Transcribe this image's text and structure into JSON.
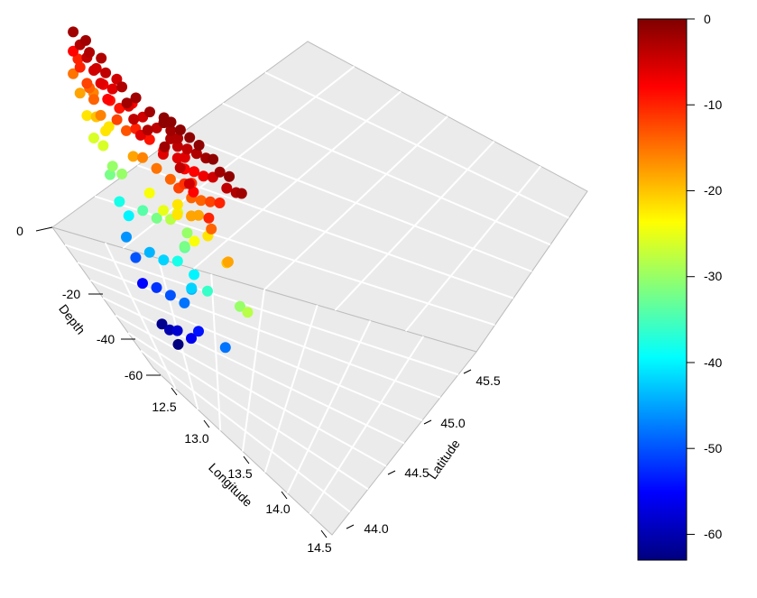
{
  "chart_data": {
    "type": "scatter",
    "title": "",
    "axes": {
      "x": {
        "label": "Longitude",
        "range": [
          12.3,
          14.6
        ],
        "ticks": [
          "12.5",
          "13.0",
          "13.5",
          "14.0",
          "14.5"
        ]
      },
      "y": {
        "label": "Latitude",
        "range": [
          43.7,
          45.9
        ],
        "ticks": [
          "44.0",
          "44.5",
          "45.0",
          "45.5"
        ]
      },
      "z": {
        "label": "Depth",
        "range": [
          -70,
          0
        ],
        "ticks": [
          "0",
          "-20",
          "-40",
          "-60"
        ]
      }
    },
    "colorbar": {
      "ticks": [
        "0",
        "-10",
        "-20",
        "-30",
        "-40",
        "-50",
        "-60"
      ],
      "range": [
        -63,
        0
      ],
      "colormap": "jet",
      "stops": [
        "#00007F",
        "#0000FF",
        "#007FFF",
        "#00FFFF",
        "#7FFF7F",
        "#FFFF00",
        "#FF7F00",
        "#FF0000",
        "#7F0000"
      ]
    },
    "grid": true,
    "points": [
      [
        12.45,
        45.7,
        -2
      ],
      [
        12.45,
        45.55,
        -3
      ],
      [
        12.45,
        45.4,
        -4
      ],
      [
        12.45,
        45.25,
        -5
      ],
      [
        12.45,
        45.1,
        -6
      ],
      [
        12.45,
        44.95,
        -8
      ],
      [
        12.45,
        45.7,
        -8
      ],
      [
        12.45,
        45.55,
        -10
      ],
      [
        12.45,
        45.4,
        -12
      ],
      [
        12.45,
        45.25,
        -14
      ],
      [
        12.45,
        45.1,
        -16
      ],
      [
        12.45,
        45.7,
        -15
      ],
      [
        12.45,
        45.55,
        -18
      ],
      [
        12.45,
        45.4,
        -22
      ],
      [
        12.45,
        45.25,
        -26
      ],
      [
        12.6,
        45.6,
        -3
      ],
      [
        12.6,
        45.45,
        -5
      ],
      [
        12.6,
        45.3,
        -7
      ],
      [
        12.6,
        45.15,
        -9
      ],
      [
        12.6,
        45.0,
        -12
      ],
      [
        12.6,
        45.6,
        -14
      ],
      [
        12.6,
        45.45,
        -20
      ],
      [
        12.6,
        45.3,
        -26
      ],
      [
        12.6,
        45.15,
        -32
      ],
      [
        12.75,
        45.5,
        -4
      ],
      [
        12.75,
        45.35,
        -6
      ],
      [
        12.75,
        45.2,
        -9
      ],
      [
        12.75,
        45.05,
        -13
      ],
      [
        12.75,
        44.9,
        -18
      ],
      [
        12.75,
        45.5,
        -22
      ],
      [
        12.75,
        45.35,
        -30
      ],
      [
        12.75,
        45.2,
        -38
      ],
      [
        12.75,
        45.05,
        -46
      ],
      [
        12.9,
        45.4,
        -3
      ],
      [
        12.9,
        45.25,
        -6
      ],
      [
        12.9,
        45.1,
        -10
      ],
      [
        12.9,
        44.95,
        -16
      ],
      [
        12.9,
        44.8,
        -24
      ],
      [
        12.9,
        45.4,
        -30
      ],
      [
        12.9,
        45.25,
        -40
      ],
      [
        12.9,
        45.1,
        -50
      ],
      [
        12.9,
        44.95,
        -55
      ],
      [
        13.05,
        45.35,
        -2
      ],
      [
        13.05,
        45.2,
        -5
      ],
      [
        13.05,
        45.05,
        -9
      ],
      [
        13.05,
        44.9,
        -15
      ],
      [
        13.05,
        44.75,
        -25
      ],
      [
        13.05,
        45.2,
        -34
      ],
      [
        13.05,
        45.05,
        -44
      ],
      [
        13.05,
        44.9,
        -52
      ],
      [
        13.2,
        45.3,
        -2
      ],
      [
        13.2,
        45.15,
        -4
      ],
      [
        13.2,
        45.0,
        -8
      ],
      [
        13.2,
        44.85,
        -14
      ],
      [
        13.2,
        44.7,
        -22
      ],
      [
        13.2,
        45.15,
        -32
      ],
      [
        13.2,
        45.0,
        -42
      ],
      [
        13.2,
        44.85,
        -50
      ],
      [
        13.2,
        44.7,
        -58
      ],
      [
        13.35,
        45.25,
        -1
      ],
      [
        13.35,
        45.1,
        -3
      ],
      [
        13.35,
        44.95,
        -6
      ],
      [
        13.35,
        44.8,
        -11
      ],
      [
        13.35,
        44.65,
        -18
      ],
      [
        13.35,
        45.1,
        -28
      ],
      [
        13.35,
        44.95,
        -38
      ],
      [
        13.35,
        44.8,
        -48
      ],
      [
        13.35,
        44.65,
        -56
      ],
      [
        13.5,
        45.5,
        -1
      ],
      [
        13.5,
        45.35,
        -2
      ],
      [
        13.5,
        45.2,
        -4
      ],
      [
        13.5,
        45.05,
        -8
      ],
      [
        13.5,
        44.9,
        -14
      ],
      [
        13.5,
        45.2,
        -22
      ],
      [
        13.5,
        45.05,
        -32
      ],
      [
        13.5,
        44.9,
        -42
      ],
      [
        13.65,
        45.6,
        -1
      ],
      [
        13.65,
        45.45,
        -3
      ],
      [
        13.65,
        45.3,
        -6
      ],
      [
        13.65,
        45.15,
        -11
      ],
      [
        13.65,
        45.0,
        -18
      ],
      [
        13.65,
        45.45,
        -26
      ],
      [
        13.65,
        45.3,
        -34
      ],
      [
        13.65,
        45.15,
        -44
      ],
      [
        13.65,
        45.0,
        -54
      ],
      [
        13.8,
        45.65,
        -1
      ],
      [
        13.8,
        45.5,
        -4
      ],
      [
        13.8,
        45.35,
        -8
      ],
      [
        13.8,
        45.2,
        -14
      ],
      [
        13.8,
        45.05,
        -22
      ],
      [
        13.8,
        45.5,
        -30
      ],
      [
        13.8,
        45.35,
        -40
      ],
      [
        13.95,
        45.7,
        -1
      ],
      [
        13.95,
        45.55,
        -3
      ],
      [
        13.95,
        45.4,
        -7
      ],
      [
        13.95,
        45.25,
        -12
      ],
      [
        14.1,
        45.75,
        -1
      ],
      [
        14.1,
        45.6,
        -2
      ],
      [
        14.1,
        45.45,
        -5
      ],
      [
        14.1,
        45.3,
        -10
      ],
      [
        14.25,
        45.7,
        -1
      ],
      [
        14.25,
        45.55,
        -2
      ],
      [
        14.25,
        45.4,
        -4
      ],
      [
        14.4,
        45.6,
        -1
      ],
      [
        14.4,
        45.45,
        -3
      ],
      [
        14.5,
        45.5,
        -2
      ],
      [
        12.8,
        44.3,
        -2
      ],
      [
        13.0,
        44.3,
        -4
      ],
      [
        13.2,
        44.35,
        -8
      ],
      [
        13.4,
        44.3,
        -14
      ],
      [
        13.6,
        44.3,
        -20
      ],
      [
        13.8,
        44.35,
        -30
      ],
      [
        12.7,
        44.5,
        -3
      ],
      [
        12.9,
        44.5,
        -6
      ],
      [
        13.1,
        44.5,
        -12
      ],
      [
        13.3,
        44.5,
        -24
      ],
      [
        13.5,
        44.55,
        -36
      ],
      [
        13.7,
        44.5,
        -48
      ],
      [
        13.0,
        44.1,
        -5
      ],
      [
        13.25,
        44.1,
        -10
      ],
      [
        13.5,
        44.1,
        -18
      ],
      [
        13.75,
        44.1,
        -28
      ],
      [
        12.7,
        45.85,
        -2
      ],
      [
        12.9,
        45.85,
        -3
      ],
      [
        13.1,
        45.85,
        -5
      ],
      [
        13.3,
        45.85,
        -8
      ],
      [
        12.6,
        45.85,
        -10
      ],
      [
        12.8,
        45.85,
        -16
      ],
      [
        13.0,
        45.85,
        -22
      ],
      [
        12.55,
        44.7,
        -2
      ],
      [
        12.55,
        44.55,
        -4
      ],
      [
        12.55,
        44.4,
        -6
      ],
      [
        13.15,
        44.95,
        -62
      ],
      [
        13.3,
        44.85,
        -63
      ],
      [
        13.1,
        44.7,
        -60
      ]
    ]
  }
}
